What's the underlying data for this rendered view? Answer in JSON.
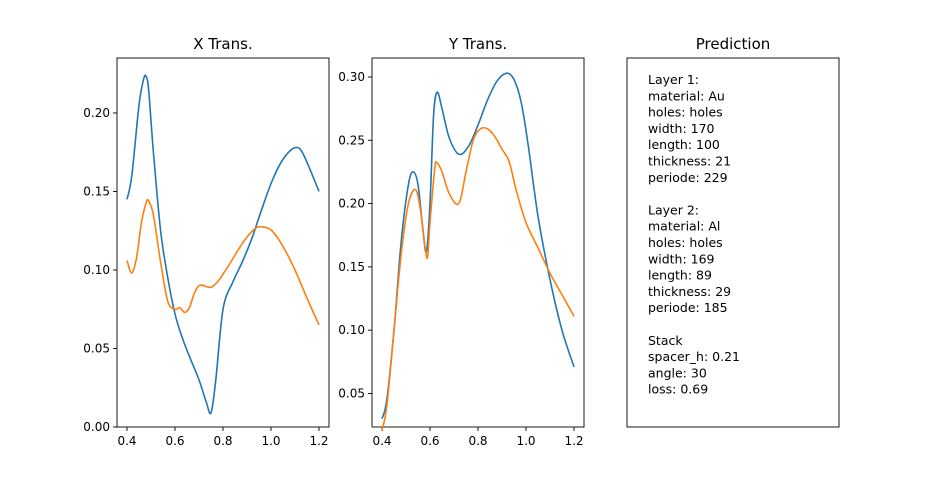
{
  "colors": {
    "series1": "#1f77b4",
    "series2": "#ff7f0e"
  },
  "chart_data": [
    {
      "type": "line",
      "title": "X Trans.",
      "xlabel": "",
      "ylabel": "",
      "xlim": [
        0.4,
        1.2
      ],
      "ylim": [
        0.0,
        0.235
      ],
      "x_ticks": [
        0.4,
        0.6,
        0.8,
        1.0,
        1.2
      ],
      "y_ticks": [
        0.0,
        0.05,
        0.1,
        0.15,
        0.2
      ],
      "x_tick_labels": [
        "0.4",
        "0.6",
        "0.8",
        "1.0",
        "1.2"
      ],
      "y_tick_labels": [
        "0.00",
        "0.05",
        "0.10",
        "0.15",
        "0.20"
      ],
      "series": [
        {
          "color": "#1f77b4",
          "x": [
            0.4,
            0.42,
            0.45,
            0.47,
            0.48,
            0.49,
            0.51,
            0.54,
            0.57,
            0.6,
            0.63,
            0.66,
            0.7,
            0.73,
            0.75,
            0.77,
            0.8,
            0.84,
            0.88,
            0.92,
            0.96,
            1.0,
            1.04,
            1.08,
            1.11,
            1.13,
            1.16,
            1.2
          ],
          "y": [
            0.145,
            0.16,
            0.205,
            0.222,
            0.223,
            0.215,
            0.175,
            0.125,
            0.095,
            0.072,
            0.057,
            0.045,
            0.03,
            0.016,
            0.009,
            0.03,
            0.075,
            0.092,
            0.105,
            0.12,
            0.138,
            0.155,
            0.168,
            0.176,
            0.178,
            0.175,
            0.165,
            0.15
          ]
        },
        {
          "color": "#ff7f0e",
          "x": [
            0.4,
            0.42,
            0.44,
            0.46,
            0.48,
            0.49,
            0.51,
            0.54,
            0.57,
            0.6,
            0.62,
            0.64,
            0.66,
            0.68,
            0.7,
            0.72,
            0.75,
            0.78,
            0.82,
            0.86,
            0.9,
            0.94,
            0.98,
            1.01,
            1.05,
            1.1,
            1.15,
            1.2
          ],
          "y": [
            0.106,
            0.098,
            0.108,
            0.13,
            0.143,
            0.144,
            0.135,
            0.105,
            0.08,
            0.075,
            0.076,
            0.073,
            0.076,
            0.085,
            0.09,
            0.09,
            0.089,
            0.093,
            0.102,
            0.112,
            0.121,
            0.127,
            0.127,
            0.124,
            0.115,
            0.1,
            0.082,
            0.065
          ]
        }
      ]
    },
    {
      "type": "line",
      "title": "Y Trans.",
      "xlabel": "",
      "ylabel": "",
      "xlim": [
        0.4,
        1.2
      ],
      "ylim": [
        0.0235,
        0.315
      ],
      "x_ticks": [
        0.4,
        0.6,
        0.8,
        1.0,
        1.2
      ],
      "y_ticks": [
        0.05,
        0.1,
        0.15,
        0.2,
        0.25,
        0.3
      ],
      "x_tick_labels": [
        "0.4",
        "0.6",
        "0.8",
        "1.0",
        "1.2"
      ],
      "y_tick_labels": [
        "0.05",
        "0.10",
        "0.15",
        "0.20",
        "0.25",
        "0.30"
      ],
      "series": [
        {
          "color": "#1f77b4",
          "x": [
            0.4,
            0.42,
            0.45,
            0.48,
            0.51,
            0.53,
            0.55,
            0.57,
            0.585,
            0.6,
            0.615,
            0.63,
            0.65,
            0.68,
            0.72,
            0.76,
            0.8,
            0.84,
            0.88,
            0.92,
            0.95,
            0.98,
            1.01,
            1.05,
            1.1,
            1.15,
            1.2
          ],
          "y": [
            0.03,
            0.045,
            0.1,
            0.17,
            0.215,
            0.225,
            0.215,
            0.18,
            0.162,
            0.2,
            0.27,
            0.288,
            0.275,
            0.252,
            0.239,
            0.245,
            0.262,
            0.282,
            0.297,
            0.303,
            0.298,
            0.28,
            0.245,
            0.19,
            0.14,
            0.1,
            0.071
          ]
        },
        {
          "color": "#ff7f0e",
          "x": [
            0.4,
            0.42,
            0.45,
            0.48,
            0.51,
            0.54,
            0.56,
            0.58,
            0.59,
            0.6,
            0.62,
            0.63,
            0.65,
            0.68,
            0.72,
            0.75,
            0.78,
            0.81,
            0.84,
            0.87,
            0.9,
            0.93,
            0.96,
            1.0,
            1.05,
            1.1,
            1.15,
            1.2
          ],
          "y": [
            0.021,
            0.04,
            0.1,
            0.16,
            0.2,
            0.211,
            0.195,
            0.165,
            0.158,
            0.185,
            0.228,
            0.232,
            0.225,
            0.208,
            0.2,
            0.225,
            0.25,
            0.259,
            0.259,
            0.253,
            0.243,
            0.233,
            0.21,
            0.185,
            0.165,
            0.145,
            0.128,
            0.111
          ]
        }
      ]
    }
  ],
  "prediction": {
    "title": "Prediction",
    "lines": [
      "Layer 1:",
      "material: Au",
      "holes: holes",
      "width: 170",
      "length: 100",
      "thickness: 21",
      "periode: 229",
      "",
      "Layer 2:",
      "material: Al",
      "holes: holes",
      "width: 169",
      "length: 89",
      "thickness: 29",
      "periode: 185",
      "",
      "Stack",
      "spacer_h: 0.21",
      "angle: 30",
      "loss: 0.69"
    ]
  }
}
